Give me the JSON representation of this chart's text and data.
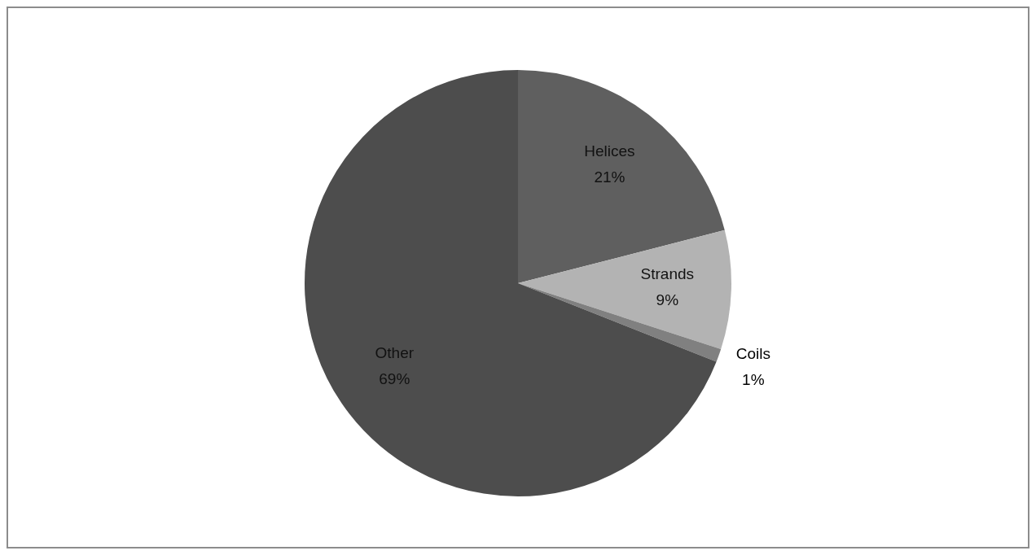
{
  "chart_data": {
    "type": "pie",
    "categories": [
      "Helices",
      "Strands",
      "Coils",
      "Other"
    ],
    "values": [
      21,
      9,
      1,
      69
    ],
    "value_labels": [
      "21%",
      "9%",
      "1%",
      "69%"
    ],
    "colors": [
      "#5f5f5f",
      "#b3b3b3",
      "#808080",
      "#4d4d4d"
    ],
    "legend": false
  }
}
